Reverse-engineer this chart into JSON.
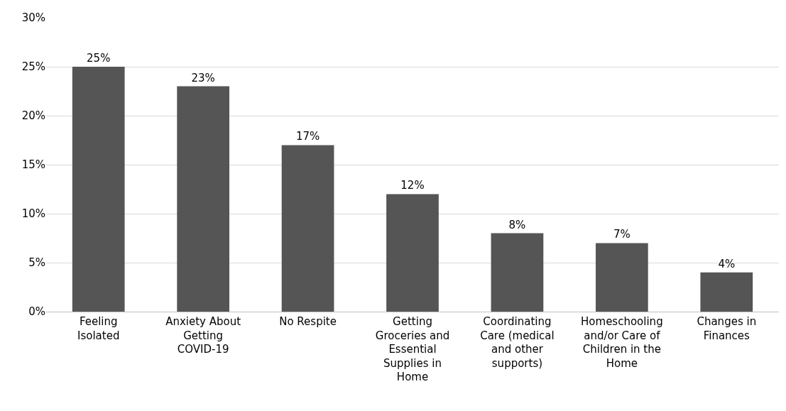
{
  "chart_data": {
    "type": "bar",
    "categories": [
      "Feeling Isolated",
      "Anxiety About Getting COVID-19",
      "No Respite",
      "Getting Groceries and Essential Supplies in Home",
      "Coordinating Care (medical and other supports)",
      "Homeschooling and/or Care of Children in the Home",
      "Changes in Finances"
    ],
    "values": [
      25,
      23,
      17,
      12,
      8,
      7,
      4
    ],
    "value_labels": [
      "25%",
      "23%",
      "17%",
      "12%",
      "8%",
      "7%",
      "4%"
    ],
    "color": "#555555",
    "ylim": [
      0,
      30
    ],
    "yticks": [
      {
        "value": 0,
        "label": "0%"
      },
      {
        "value": 5,
        "label": "5%"
      },
      {
        "value": 10,
        "label": "10%"
      },
      {
        "value": 15,
        "label": "15%"
      },
      {
        "value": 20,
        "label": "20%"
      },
      {
        "value": 25,
        "label": "25%"
      },
      {
        "value": 30,
        "label": "30%"
      }
    ],
    "grid": "y"
  }
}
